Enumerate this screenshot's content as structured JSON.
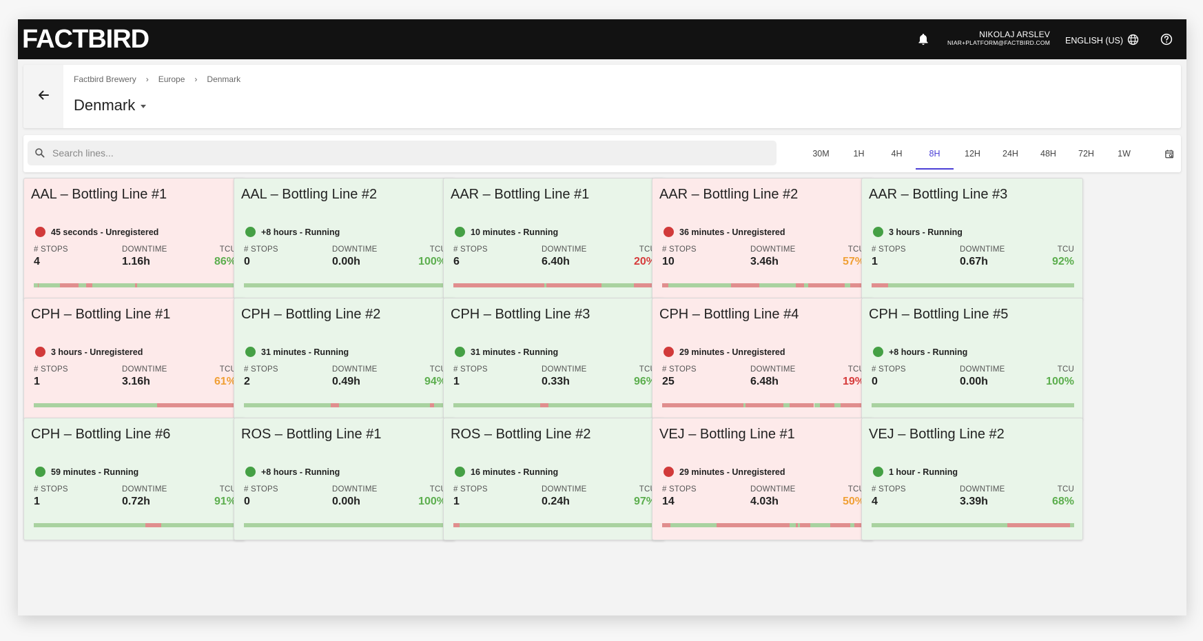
{
  "app": {
    "logo": "FACTBIRD",
    "user_name": "NIKOLAJ ARSLEV",
    "user_email": "NIAR+PLATFORM@FACTBIRD.COM",
    "language": "ENGLISH (US)"
  },
  "header": {
    "breadcrumb": [
      "Factbird Brewery",
      "Europe",
      "Denmark"
    ],
    "title": "Denmark"
  },
  "filters": {
    "search_placeholder": "Search lines...",
    "time_ranges": [
      "30M",
      "1H",
      "4H",
      "8H",
      "12H",
      "24H",
      "48H",
      "72H",
      "1W"
    ],
    "selected_range": "8H"
  },
  "metric_labels": {
    "stops": "# STOPS",
    "downtime": "DOWNTIME",
    "tcu": "TCU"
  },
  "lines": [
    {
      "name": "AAL – Bottling Line #1",
      "state": "red",
      "status": "45 seconds - Unregistered",
      "stops": "4",
      "downtime": "1.16h",
      "tcu": "86%",
      "tcu_level": "good",
      "timeline": [
        [
          "g",
          0,
          2
        ],
        [
          "r",
          2,
          2.5
        ],
        [
          "g",
          2.5,
          13
        ],
        [
          "r",
          13,
          22
        ],
        [
          "g",
          22,
          26
        ],
        [
          "r",
          26,
          29
        ],
        [
          "g",
          29,
          50
        ],
        [
          "r",
          50,
          51
        ],
        [
          "g",
          51,
          100
        ]
      ]
    },
    {
      "name": "AAL – Bottling Line #2",
      "state": "green",
      "status": "+8 hours - Running",
      "stops": "0",
      "downtime": "0.00h",
      "tcu": "100%",
      "tcu_level": "good",
      "timeline": [
        [
          "g",
          0,
          100
        ]
      ]
    },
    {
      "name": "AAR – Bottling Line #1",
      "state": "green",
      "status": "10 minutes - Running",
      "stops": "6",
      "downtime": "6.40h",
      "tcu": "20%",
      "tcu_level": "bad",
      "timeline": [
        [
          "r",
          0,
          45
        ],
        [
          "g",
          45,
          46
        ],
        [
          "r",
          46,
          73
        ],
        [
          "g",
          73,
          89
        ],
        [
          "r",
          89,
          100
        ]
      ]
    },
    {
      "name": "AAR – Bottling Line #2",
      "state": "red",
      "status": "36 minutes - Unregistered",
      "stops": "10",
      "downtime": "3.46h",
      "tcu": "57%",
      "tcu_level": "warn",
      "timeline": [
        [
          "r",
          0,
          3
        ],
        [
          "g",
          3,
          34
        ],
        [
          "r",
          34,
          48
        ],
        [
          "g",
          48,
          66
        ],
        [
          "r",
          66,
          70
        ],
        [
          "g",
          70,
          72
        ],
        [
          "r",
          72,
          90
        ],
        [
          "g",
          90,
          93
        ],
        [
          "r",
          93,
          100
        ]
      ]
    },
    {
      "name": "AAR – Bottling Line #3",
      "state": "green",
      "status": "3 hours - Running",
      "stops": "1",
      "downtime": "0.67h",
      "tcu": "92%",
      "tcu_level": "good",
      "timeline": [
        [
          "r",
          0,
          8
        ],
        [
          "g",
          8,
          100
        ]
      ]
    },
    {
      "name": "CPH – Bottling Line #1",
      "state": "red",
      "status": "3 hours - Unregistered",
      "stops": "1",
      "downtime": "3.16h",
      "tcu": "61%",
      "tcu_level": "warn",
      "timeline": [
        [
          "g",
          0,
          61
        ],
        [
          "r",
          61,
          100
        ]
      ]
    },
    {
      "name": "CPH – Bottling Line #2",
      "state": "green",
      "status": "31 minutes - Running",
      "stops": "2",
      "downtime": "0.49h",
      "tcu": "94%",
      "tcu_level": "good",
      "timeline": [
        [
          "g",
          0,
          43
        ],
        [
          "r",
          43,
          47
        ],
        [
          "g",
          47,
          92
        ],
        [
          "r",
          92,
          94
        ],
        [
          "g",
          94,
          100
        ]
      ]
    },
    {
      "name": "CPH – Bottling Line #3",
      "state": "green",
      "status": "31 minutes - Running",
      "stops": "1",
      "downtime": "0.33h",
      "tcu": "96%",
      "tcu_level": "good",
      "timeline": [
        [
          "g",
          0,
          43
        ],
        [
          "r",
          43,
          47
        ],
        [
          "g",
          47,
          100
        ]
      ]
    },
    {
      "name": "CPH – Bottling Line #4",
      "state": "red",
      "status": "29 minutes - Unregistered",
      "stops": "25",
      "downtime": "6.48h",
      "tcu": "19%",
      "tcu_level": "bad",
      "timeline": [
        [
          "r",
          0,
          40
        ],
        [
          "g",
          40,
          41
        ],
        [
          "r",
          41,
          60
        ],
        [
          "g",
          60,
          63
        ],
        [
          "r",
          63,
          75
        ],
        [
          "g",
          75,
          78
        ],
        [
          "r",
          78,
          85
        ],
        [
          "g",
          85,
          88
        ],
        [
          "r",
          88,
          100
        ]
      ]
    },
    {
      "name": "CPH – Bottling Line #5",
      "state": "green",
      "status": "+8 hours - Running",
      "stops": "0",
      "downtime": "0.00h",
      "tcu": "100%",
      "tcu_level": "good",
      "timeline": [
        [
          "g",
          0,
          100
        ]
      ]
    },
    {
      "name": "CPH – Bottling Line #6",
      "state": "green",
      "status": "59 minutes - Running",
      "stops": "1",
      "downtime": "0.72h",
      "tcu": "91%",
      "tcu_level": "good",
      "timeline": [
        [
          "g",
          0,
          55
        ],
        [
          "r",
          55,
          63
        ],
        [
          "g",
          63,
          100
        ]
      ]
    },
    {
      "name": "ROS – Bottling Line #1",
      "state": "green",
      "status": "+8 hours - Running",
      "stops": "0",
      "downtime": "0.00h",
      "tcu": "100%",
      "tcu_level": "good",
      "timeline": [
        [
          "g",
          0,
          100
        ]
      ]
    },
    {
      "name": "ROS – Bottling Line #2",
      "state": "green",
      "status": "16 minutes - Running",
      "stops": "1",
      "downtime": "0.24h",
      "tcu": "97%",
      "tcu_level": "good",
      "timeline": [
        [
          "r",
          0,
          3
        ],
        [
          "g",
          3,
          100
        ]
      ]
    },
    {
      "name": "VEJ – Bottling Line #1",
      "state": "red",
      "status": "29 minutes - Unregistered",
      "stops": "14",
      "downtime": "4.03h",
      "tcu": "50%",
      "tcu_level": "warn",
      "timeline": [
        [
          "r",
          0,
          4
        ],
        [
          "g",
          4,
          27
        ],
        [
          "r",
          27,
          63
        ],
        [
          "g",
          63,
          66
        ],
        [
          "r",
          66,
          67
        ],
        [
          "g",
          67,
          68
        ],
        [
          "r",
          68,
          73
        ],
        [
          "g",
          73,
          83
        ],
        [
          "r",
          83,
          93
        ],
        [
          "g",
          93,
          95
        ],
        [
          "r",
          95,
          100
        ]
      ]
    },
    {
      "name": "VEJ – Bottling Line #2",
      "state": "green",
      "status": "1 hour - Running",
      "stops": "4",
      "downtime": "3.39h",
      "tcu": "68%",
      "tcu_level": "good",
      "timeline": [
        [
          "g",
          0,
          67
        ],
        [
          "r",
          67,
          98
        ],
        [
          "g",
          98,
          100
        ]
      ]
    }
  ]
}
